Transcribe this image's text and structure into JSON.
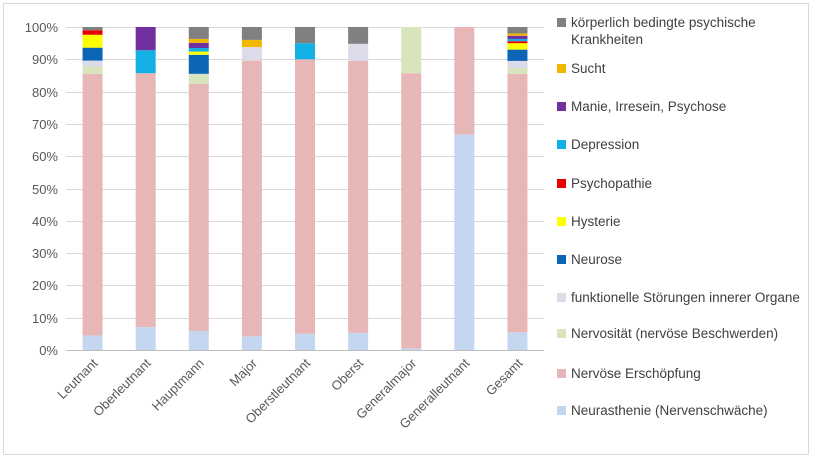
{
  "chart_data": {
    "type": "bar",
    "stacked": true,
    "percent": true,
    "categories": [
      "Leutnant",
      "Oberleutnant",
      "Hauptmann",
      "Major",
      "Oberstleutnant",
      "Oberst",
      "Generalmajor",
      "Generalleutnant",
      "Gesamt"
    ],
    "ylim": [
      0,
      100
    ],
    "yticks": [
      "0%",
      "10%",
      "20%",
      "30%",
      "40%",
      "50%",
      "60%",
      "70%",
      "80%",
      "90%",
      "100%"
    ],
    "grid": true,
    "legend_position": "right",
    "series": [
      {
        "name": "Neurasthenie (Nervenschwäche)",
        "color": "#c5d7f0",
        "values": [
          4.5,
          7.1,
          5.9,
          4.2,
          5.0,
          5.3,
          0.5,
          66.7,
          5.5
        ]
      },
      {
        "name": "Nervöse Erschöpfung",
        "color": "#e6b7b6",
        "values": [
          81.0,
          78.6,
          76.5,
          85.4,
          85.0,
          84.2,
          85.2,
          33.3,
          80.0
        ]
      },
      {
        "name": "Nervosität (nervöse Beschwerden)",
        "color": "#d8e4bc",
        "values": [
          2.3,
          0,
          3.1,
          0,
          0,
          0,
          14.3,
          0,
          1.8
        ]
      },
      {
        "name": "funktionelle Störungen innerer Organe",
        "color": "#dcdbe9",
        "values": [
          1.8,
          0,
          0,
          4.2,
          0,
          5.3,
          0,
          0,
          2.2
        ]
      },
      {
        "name": "Neurose",
        "color": "#0d66b5",
        "values": [
          4.0,
          0,
          5.9,
          0,
          0,
          0,
          0,
          0,
          3.5
        ]
      },
      {
        "name": "Hysterie",
        "color": "#ffff00",
        "values": [
          4.0,
          0,
          1.0,
          0,
          0,
          0,
          0,
          0,
          2.0
        ]
      },
      {
        "name": "Psychopathie",
        "color": "#e60000",
        "values": [
          1.4,
          0,
          0,
          0,
          0,
          0,
          0,
          0,
          0.6
        ]
      },
      {
        "name": "Depression",
        "color": "#13b0e6",
        "values": [
          0,
          7.1,
          1.1,
          0,
          5.0,
          0,
          0,
          0,
          0.7
        ]
      },
      {
        "name": "Manie, Irresein, Psychose",
        "color": "#7030a0",
        "values": [
          0,
          7.2,
          1.6,
          0,
          0,
          0,
          0,
          0,
          1.0
        ]
      },
      {
        "name": "Sucht",
        "color": "#f2b800",
        "values": [
          0,
          0,
          1.2,
          2.2,
          0,
          0,
          0,
          0,
          0.7
        ]
      },
      {
        "name": "körperlich bedingte psychische Krankheiten",
        "color": "#808080",
        "values": [
          1.0,
          0,
          3.7,
          4.0,
          5.0,
          5.2,
          0,
          0,
          2.0
        ]
      }
    ]
  }
}
